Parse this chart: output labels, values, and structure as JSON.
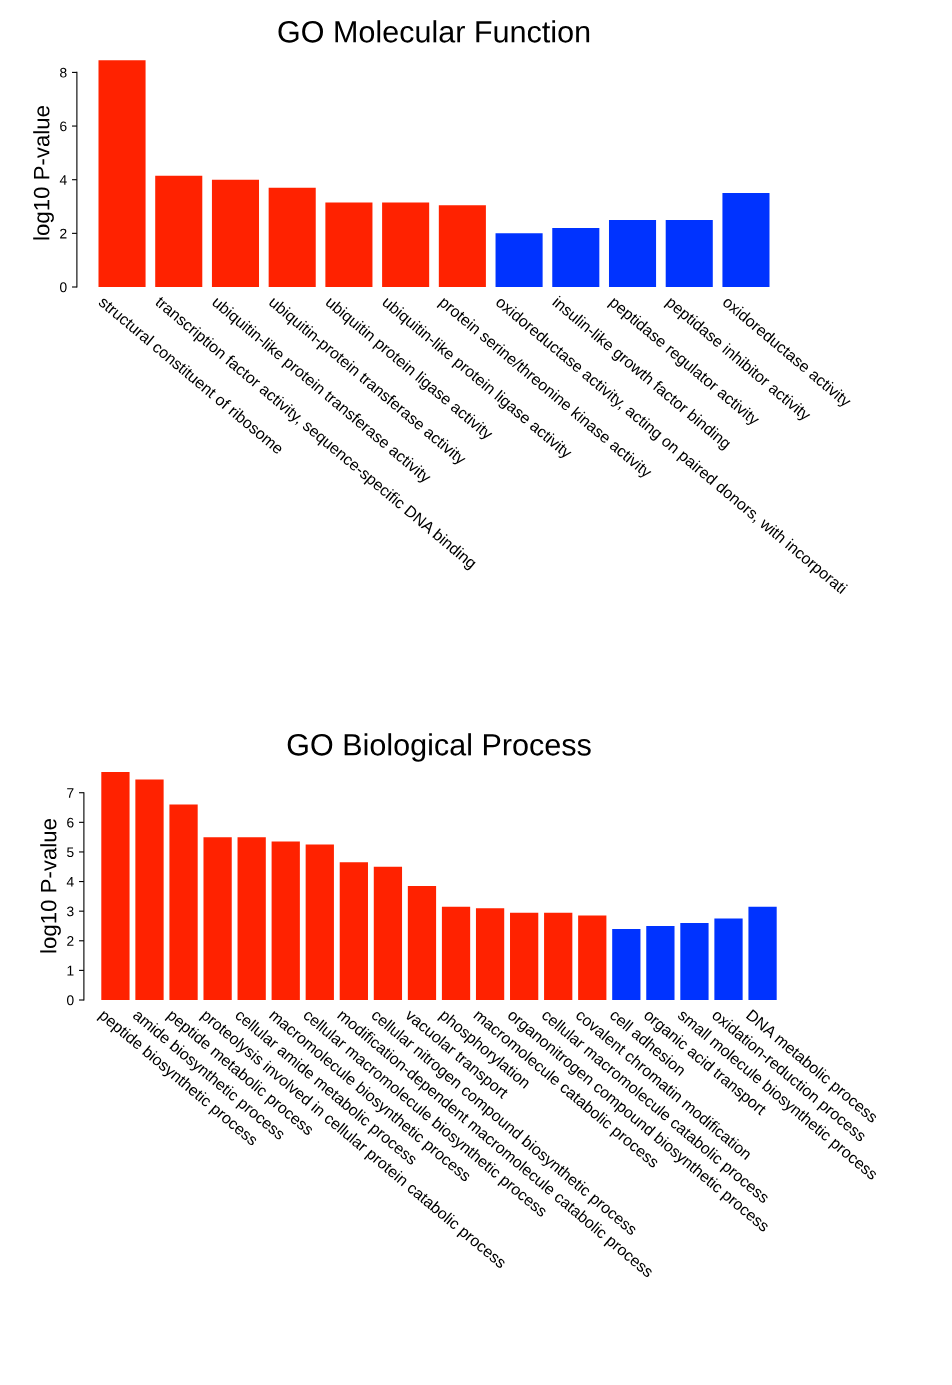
{
  "chart_data": [
    {
      "type": "bar",
      "title": "GO Molecular Function",
      "ylabel": "log10 P-value",
      "categories": [
        "structural constituent of ribosome",
        "transcription factor activity, sequence-specific DNA binding",
        "ubiquitin-like protein transferase activity",
        "ubiquitin-protein transferase activity",
        "ubiquitin protein ligase activity",
        "ubiquitin-like protein ligase activity",
        "protein serine/threonine kinase activity",
        "oxidoreductase activity, acting on paired donors, with incorporati",
        "insulin-like growth factor binding",
        "peptidase regulator activity",
        "peptidase inhibitor activity",
        "oxidoreductase activity"
      ],
      "values": [
        8.45,
        4.15,
        4.0,
        3.7,
        3.15,
        3.15,
        3.05,
        2.0,
        2.2,
        2.5,
        2.5,
        3.5
      ],
      "colors": [
        "#ff2200",
        "#ff2200",
        "#ff2200",
        "#ff2200",
        "#ff2200",
        "#ff2200",
        "#ff2200",
        "#0033ff",
        "#0033ff",
        "#0033ff",
        "#0033ff",
        "#0033ff"
      ],
      "ylim": [
        0,
        8.5
      ],
      "yticks": [
        0,
        2,
        4,
        6,
        8
      ],
      "grid": false,
      "legend": false
    },
    {
      "type": "bar",
      "title": "GO Biological Process",
      "ylabel": "log10 P-value",
      "categories": [
        "peptide biosynthetic process",
        "amide biosynthetic process",
        "peptide metabolic process",
        "proteolysis involved in cellular protein catabolic process",
        "cellular amide metabolic process",
        "macromolecule biosynthetic process",
        "cellular macromolecule biosynthetic process",
        "modification-dependent macromolecule catabolic process",
        "cellular nitrogen compound biosynthetic process",
        "vacuolar transport",
        "phosphorylation",
        "macromolecule catabolic process",
        "organonitrogen compound biosynthetic process",
        "cellular macromolecule catabolic process",
        "covalent chromatin modification",
        "cell adhesion",
        "organic acid transport",
        "small molecule biosynthetic process",
        "oxidation-reduction process",
        "DNA metabolic process"
      ],
      "values": [
        7.7,
        7.45,
        6.6,
        5.5,
        5.5,
        5.35,
        5.25,
        4.65,
        4.5,
        3.85,
        3.15,
        3.1,
        2.95,
        2.95,
        2.85,
        2.4,
        2.5,
        2.6,
        2.75,
        3.15
      ],
      "colors": [
        "#ff2200",
        "#ff2200",
        "#ff2200",
        "#ff2200",
        "#ff2200",
        "#ff2200",
        "#ff2200",
        "#ff2200",
        "#ff2200",
        "#ff2200",
        "#ff2200",
        "#ff2200",
        "#ff2200",
        "#ff2200",
        "#ff2200",
        "#0033ff",
        "#0033ff",
        "#0033ff",
        "#0033ff",
        "#0033ff"
      ],
      "ylim": [
        0,
        7.7
      ],
      "yticks": [
        0,
        1,
        2,
        3,
        4,
        5,
        6,
        7
      ],
      "grid": false,
      "legend": false
    }
  ]
}
